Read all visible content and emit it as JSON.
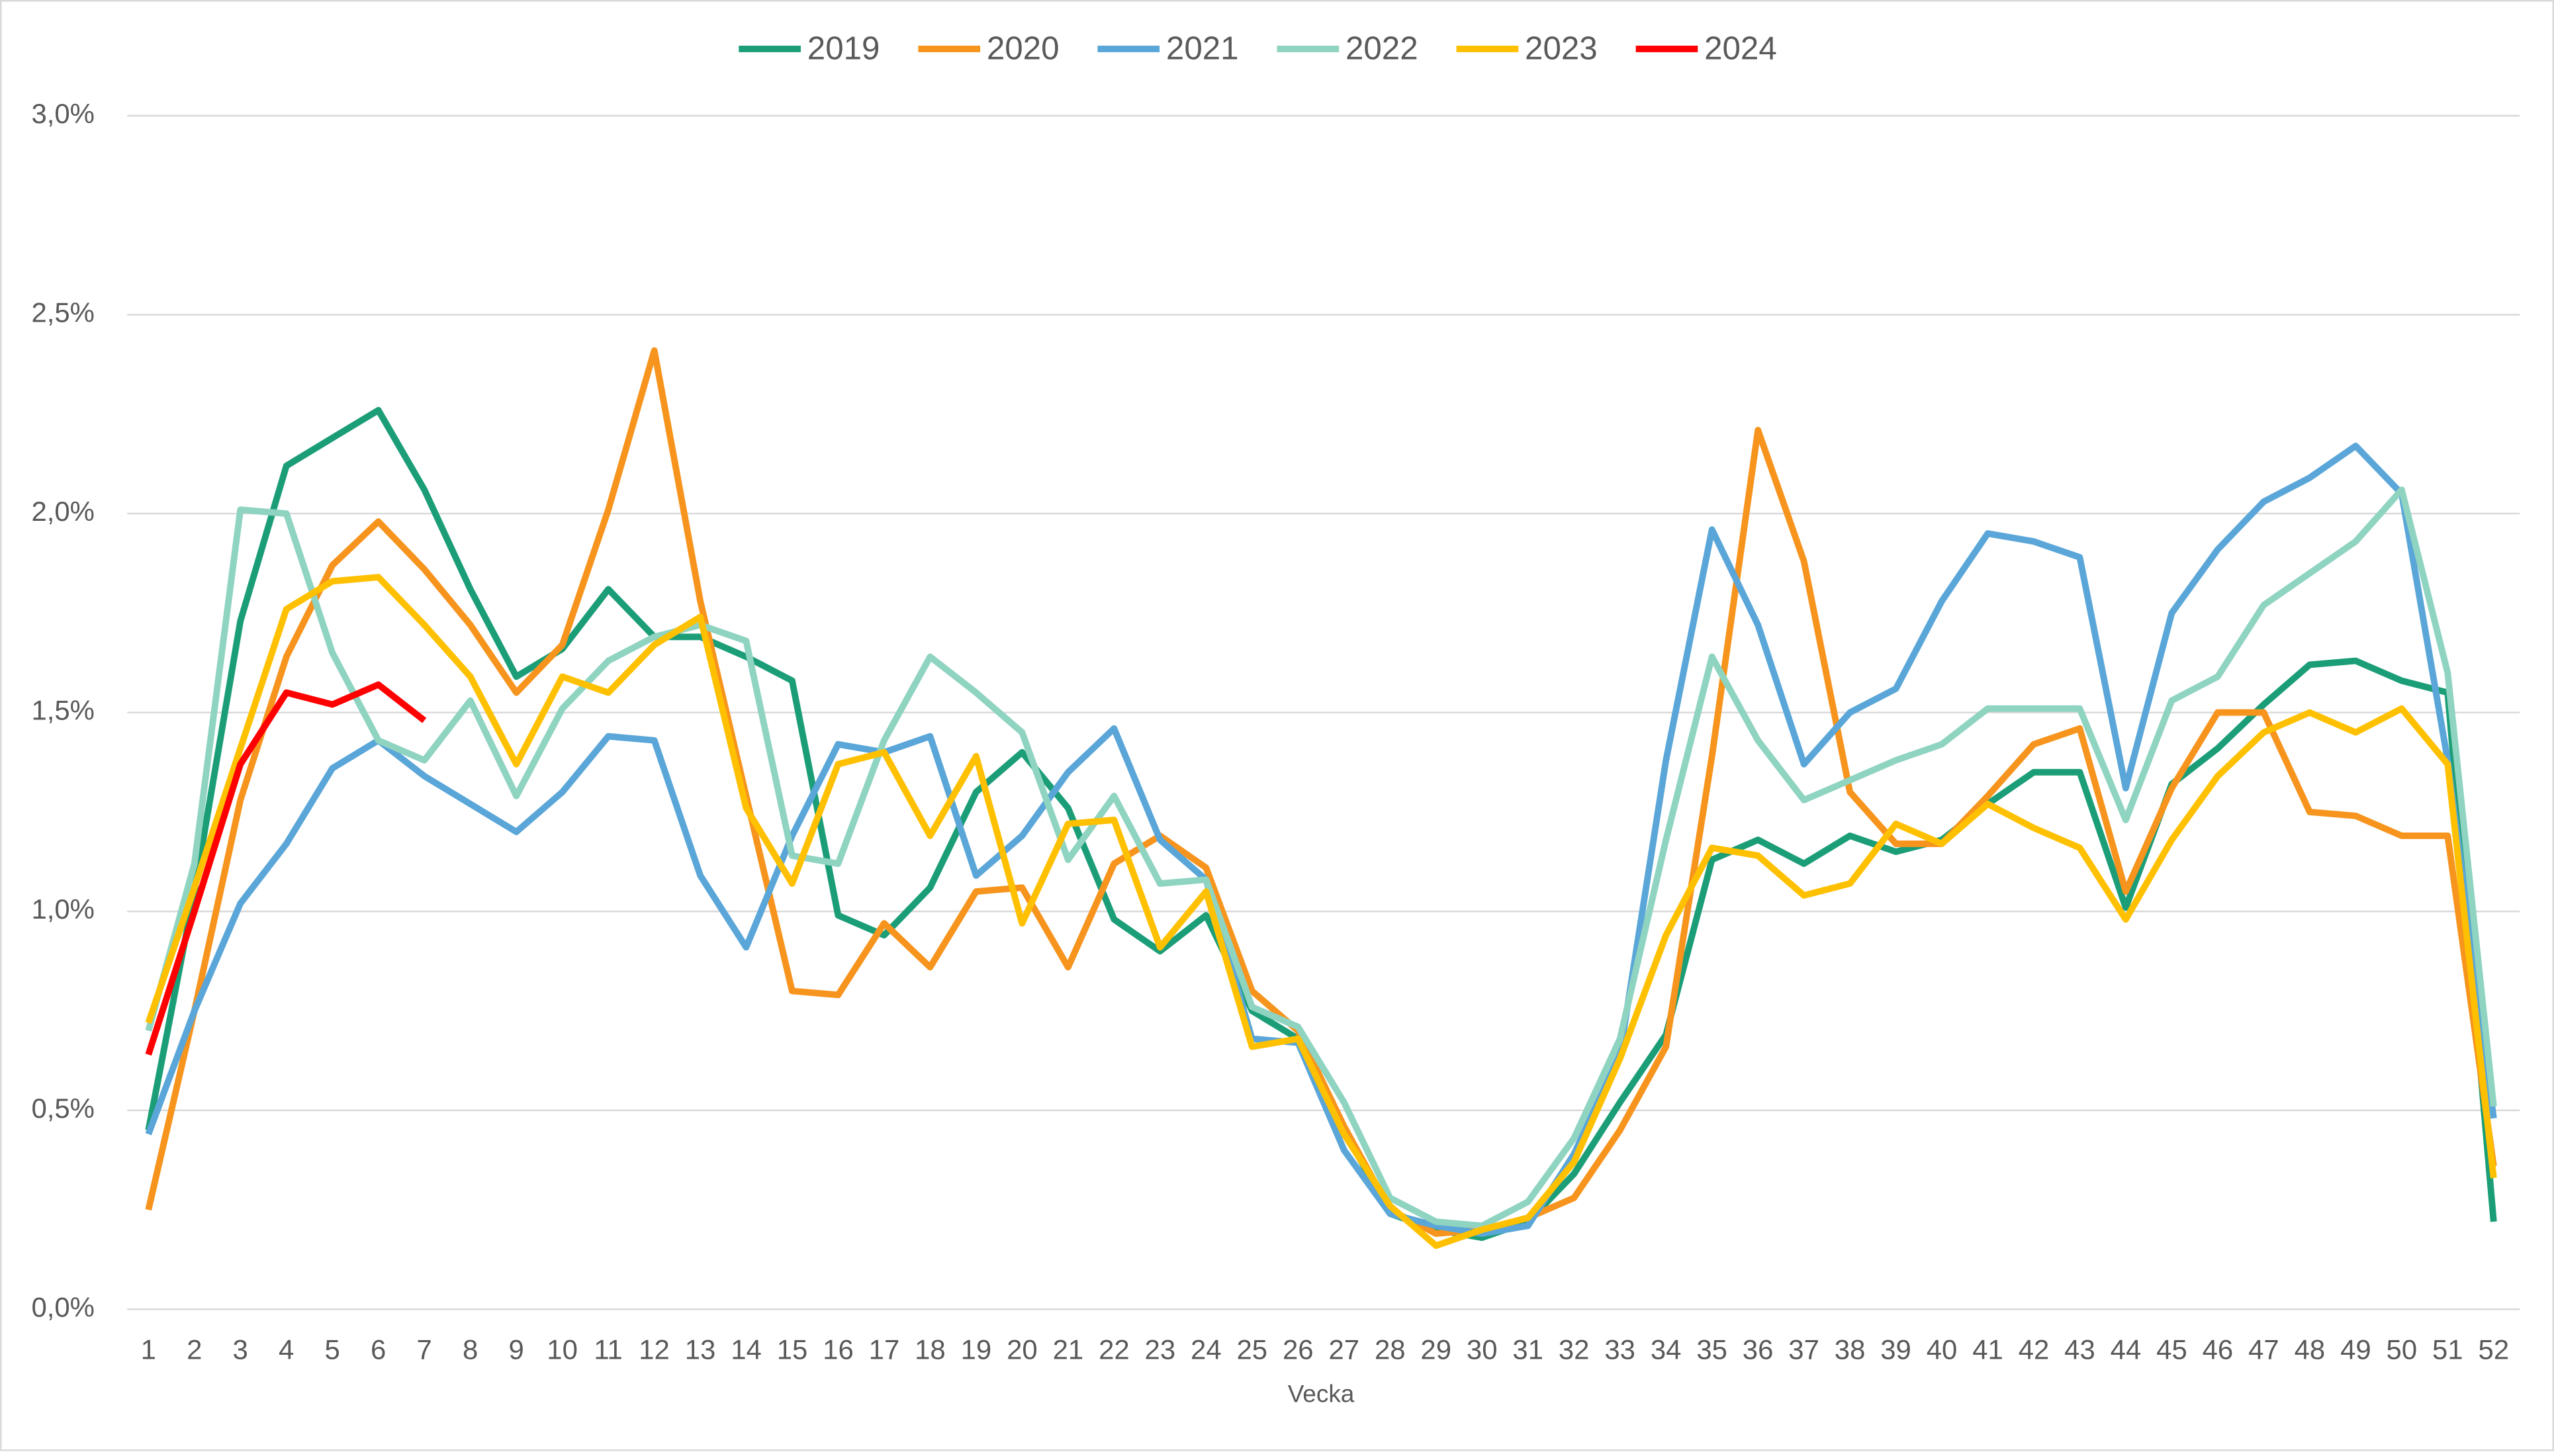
{
  "chart_data": {
    "type": "line",
    "xlabel": "Vecka",
    "x": [
      1,
      2,
      3,
      4,
      5,
      6,
      7,
      8,
      9,
      10,
      11,
      12,
      13,
      14,
      15,
      16,
      17,
      18,
      19,
      20,
      21,
      22,
      23,
      24,
      25,
      26,
      27,
      28,
      29,
      30,
      31,
      32,
      33,
      34,
      35,
      36,
      37,
      38,
      39,
      40,
      41,
      42,
      43,
      44,
      45,
      46,
      47,
      48,
      49,
      50,
      51,
      52
    ],
    "xlim": [
      1,
      52
    ],
    "ylim": [
      0,
      3
    ],
    "yticks": [
      {
        "value": 0,
        "label": "0,0%"
      },
      {
        "value": 0.5,
        "label": "0,5%"
      },
      {
        "value": 1,
        "label": "1,0%"
      },
      {
        "value": 1.5,
        "label": "1,5%"
      },
      {
        "value": 2,
        "label": "2,0%"
      },
      {
        "value": 2.5,
        "label": "2,5%"
      },
      {
        "value": 3,
        "label": "3,0%"
      }
    ],
    "grid": true,
    "legend": "top",
    "series": [
      {
        "name": "2019",
        "color": "#1b9e77",
        "values": [
          0.45,
          1.05,
          1.73,
          2.12,
          2.19,
          2.26,
          2.06,
          1.81,
          1.59,
          1.66,
          1.81,
          1.69,
          1.69,
          1.64,
          1.58,
          0.99,
          0.94,
          1.06,
          1.3,
          1.4,
          1.26,
          0.98,
          0.9,
          0.99,
          0.75,
          0.68,
          0.45,
          0.24,
          0.2,
          0.18,
          0.22,
          0.34,
          0.52,
          0.69,
          1.13,
          1.18,
          1.12,
          1.19,
          1.15,
          1.18,
          1.27,
          1.35,
          1.35,
          1.01,
          1.32,
          1.41,
          1.52,
          1.62,
          1.63,
          1.58,
          1.55,
          0.22
        ]
      },
      {
        "name": "2020",
        "color": "#f7941d",
        "values": [
          0.25,
          0.75,
          1.28,
          1.64,
          1.87,
          1.98,
          1.86,
          1.72,
          1.55,
          1.67,
          2.01,
          2.41,
          1.78,
          1.29,
          0.8,
          0.79,
          0.97,
          0.86,
          1.05,
          1.06,
          0.86,
          1.12,
          1.19,
          1.11,
          0.8,
          0.7,
          0.46,
          0.25,
          0.19,
          0.2,
          0.23,
          0.28,
          0.45,
          0.66,
          1.39,
          2.21,
          1.88,
          1.3,
          1.17,
          1.17,
          1.29,
          1.42,
          1.46,
          1.05,
          1.31,
          1.5,
          1.5,
          1.25,
          1.24,
          1.19,
          1.19,
          0.36
        ]
      },
      {
        "name": "2021",
        "color": "#5aa6d8",
        "values": [
          0.44,
          0.75,
          1.02,
          1.17,
          1.36,
          1.43,
          1.34,
          1.27,
          1.2,
          1.3,
          1.44,
          1.43,
          1.09,
          0.91,
          1.19,
          1.42,
          1.4,
          1.44,
          1.09,
          1.19,
          1.35,
          1.46,
          1.18,
          1.08,
          0.68,
          0.67,
          0.4,
          0.24,
          0.21,
          0.19,
          0.21,
          0.39,
          0.64,
          1.38,
          1.96,
          1.72,
          1.37,
          1.5,
          1.56,
          1.78,
          1.95,
          1.93,
          1.89,
          1.31,
          1.75,
          1.91,
          2.03,
          2.09,
          2.17,
          2.05,
          1.38,
          0.48
        ]
      },
      {
        "name": "2022",
        "color": "#8fd3c1",
        "values": [
          0.7,
          1.12,
          2.01,
          2.0,
          1.65,
          1.43,
          1.38,
          1.53,
          1.29,
          1.51,
          1.63,
          1.69,
          1.72,
          1.68,
          1.14,
          1.12,
          1.43,
          1.64,
          1.55,
          1.45,
          1.13,
          1.29,
          1.07,
          1.08,
          0.76,
          0.71,
          0.52,
          0.28,
          0.22,
          0.21,
          0.27,
          0.43,
          0.68,
          1.18,
          1.64,
          1.43,
          1.28,
          1.33,
          1.38,
          1.42,
          1.51,
          1.51,
          1.51,
          1.23,
          1.53,
          1.59,
          1.77,
          1.85,
          1.93,
          2.06,
          1.6,
          0.51
        ]
      },
      {
        "name": "2023",
        "color": "#ffc000",
        "values": [
          0.72,
          1.06,
          1.41,
          1.76,
          1.83,
          1.84,
          1.72,
          1.59,
          1.37,
          1.59,
          1.55,
          1.67,
          1.74,
          1.26,
          1.07,
          1.37,
          1.4,
          1.19,
          1.39,
          0.97,
          1.22,
          1.23,
          0.91,
          1.05,
          0.66,
          0.68,
          0.44,
          0.26,
          0.16,
          0.2,
          0.23,
          0.37,
          0.63,
          0.94,
          1.16,
          1.14,
          1.04,
          1.07,
          1.22,
          1.17,
          1.27,
          1.21,
          1.16,
          0.98,
          1.18,
          1.34,
          1.45,
          1.5,
          1.45,
          1.51,
          1.37,
          0.33
        ]
      },
      {
        "name": "2024",
        "color": "#ff0000",
        "values": [
          0.64,
          1.0,
          1.37,
          1.55,
          1.52,
          1.57,
          1.48,
          null,
          null,
          null,
          null,
          null,
          null,
          null,
          null,
          null,
          null,
          null,
          null,
          null,
          null,
          null,
          null,
          null,
          null,
          null,
          null,
          null,
          null,
          null,
          null,
          null,
          null,
          null,
          null,
          null,
          null,
          null,
          null,
          null,
          null,
          null,
          null,
          null,
          null,
          null,
          null,
          null,
          null,
          null,
          null,
          null
        ]
      }
    ]
  }
}
